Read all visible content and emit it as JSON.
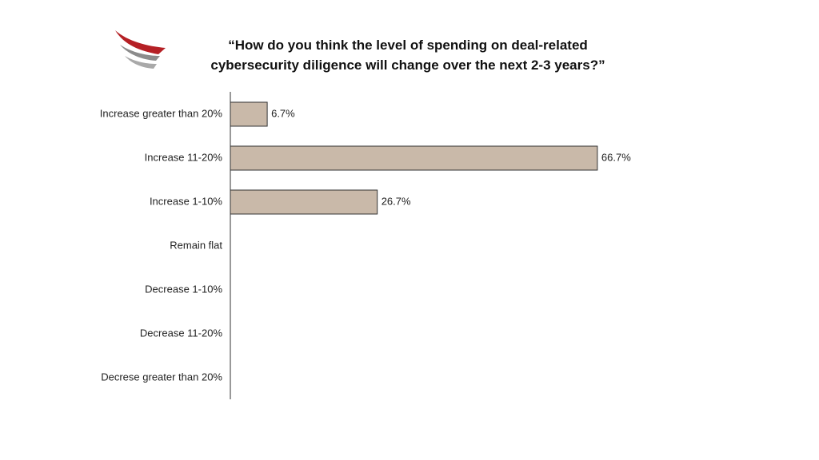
{
  "chart_data": {
    "type": "bar",
    "orientation": "horizontal",
    "title": "“How do you think the level of spending on deal-related cybersecurity diligence will change over the next 2-3 years?”",
    "categories": [
      "Increase greater than 20%",
      "Increase 11-20%",
      "Increase 1-10%",
      "Remain flat",
      "Decrease 1-10%",
      "Decrease 11-20%",
      "Decrese greater than  20%"
    ],
    "values": [
      6.7,
      66.7,
      26.7,
      0,
      0,
      0,
      0
    ],
    "value_labels": [
      "6.7%",
      "66.7%",
      "26.7%",
      null,
      null,
      null,
      null
    ],
    "color": "#c9b9a9"
  }
}
